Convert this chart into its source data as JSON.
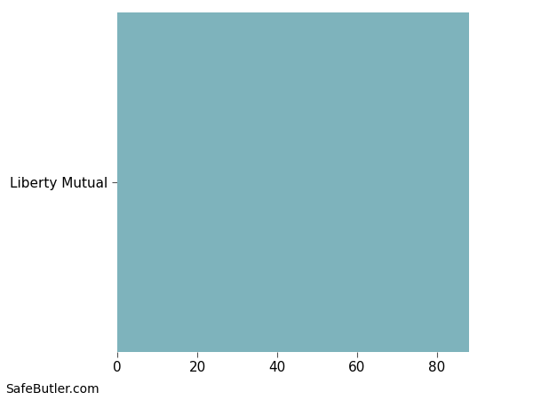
{
  "categories": [
    "Liberty Mutual"
  ],
  "values": [
    88
  ],
  "bar_color": "#7eb3bc",
  "xlim": [
    0,
    100
  ],
  "xticks": [
    0,
    20,
    40,
    60,
    80
  ],
  "background_color": "#ffffff",
  "grid_color": "#eeeeee",
  "watermark": "SafeButler.com",
  "watermark_fontsize": 10,
  "bar_height": 0.92,
  "tick_fontsize": 11,
  "label_fontsize": 11
}
